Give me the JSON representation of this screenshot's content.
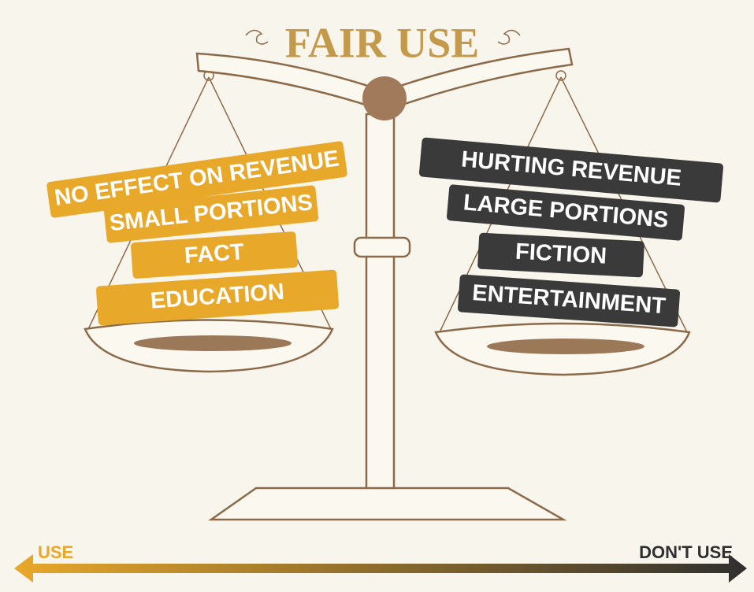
{
  "title": "FAIR USE",
  "left_side": {
    "labels": [
      "NO EFFECT ON REVENUE",
      "SMALL PORTIONS",
      "FACT",
      "EDUCATION"
    ]
  },
  "right_side": {
    "labels": [
      "HURTING REVENUE",
      "LARGE PORTIONS",
      "FICTION",
      "ENTERTAINMENT"
    ]
  },
  "scale_axis": {
    "left_label": "USE",
    "right_label": "DON'T USE"
  }
}
